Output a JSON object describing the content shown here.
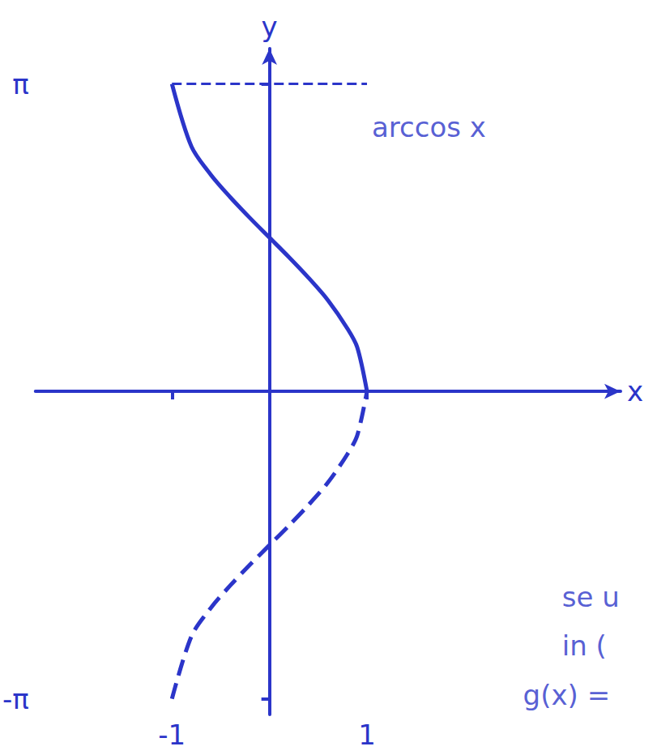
{
  "chart_data": {
    "type": "line",
    "x_label": "x",
    "y_label": "y",
    "xlim": [
      -2.4,
      3.6
    ],
    "ylim": [
      -3.3,
      3.5
    ],
    "xticks": [
      -1,
      1
    ],
    "yticks": [
      {
        "value": 3.14,
        "label": "π"
      },
      {
        "value": -3.14,
        "label": "-π"
      }
    ],
    "grid": false,
    "color": "#2b35c9",
    "series": [
      {
        "x": [
          -1,
          -0.8,
          -0.6,
          -0.4,
          -0.2,
          0,
          0.2,
          0.4,
          0.6,
          0.8,
          0.9,
          1
        ],
        "values": [
          3.14,
          2.5,
          2.21,
          1.98,
          1.77,
          1.57,
          1.37,
          1.16,
          0.93,
          0.64,
          0.45,
          0
        ],
        "line_style": "solid"
      },
      {
        "x": [
          -1,
          -0.8,
          -0.6,
          -0.4,
          -0.2,
          0,
          0.2,
          0.4,
          0.6,
          0.8,
          0.9,
          1
        ],
        "values": [
          -3.14,
          -2.5,
          -2.21,
          -1.98,
          -1.77,
          -1.57,
          -1.37,
          -1.16,
          -0.93,
          -0.64,
          -0.45,
          0
        ],
        "line_style": "dashed"
      }
    ],
    "annotations": [
      {
        "text": "arccos x",
        "x": 1.05,
        "y": 2.7
      },
      {
        "text": "se u",
        "x": 3.0,
        "y": -2.1
      },
      {
        "text": "in (",
        "x": 3.0,
        "y": -2.6
      },
      {
        "text": "g(x) =",
        "x": 2.6,
        "y": -3.1
      }
    ]
  }
}
